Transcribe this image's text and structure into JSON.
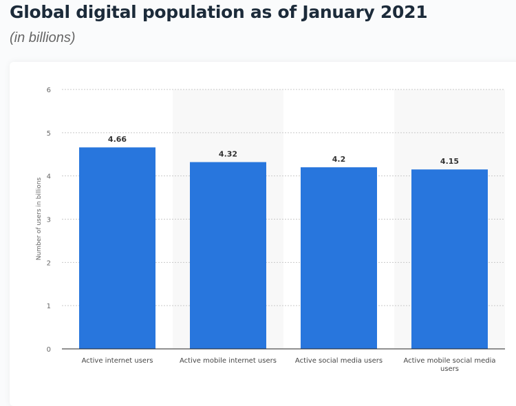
{
  "title": "Global digital population as of January 2021",
  "subtitle": "(in billions)",
  "chart_data": {
    "type": "bar",
    "categories": [
      "Active internet users",
      "Active mobile internet users",
      "Active social media users",
      "Active mobile social media users"
    ],
    "values": [
      4.66,
      4.32,
      4.2,
      4.15
    ],
    "data_labels": [
      "4.66",
      "4.32",
      "4.2",
      "4.15"
    ],
    "ylabel": "Number of users in billions",
    "xlabel": "",
    "ylim": [
      0,
      6
    ],
    "yticks": [
      0,
      1,
      2,
      3,
      4,
      5,
      6
    ],
    "grid": true,
    "bar_color": "#2876dd"
  }
}
